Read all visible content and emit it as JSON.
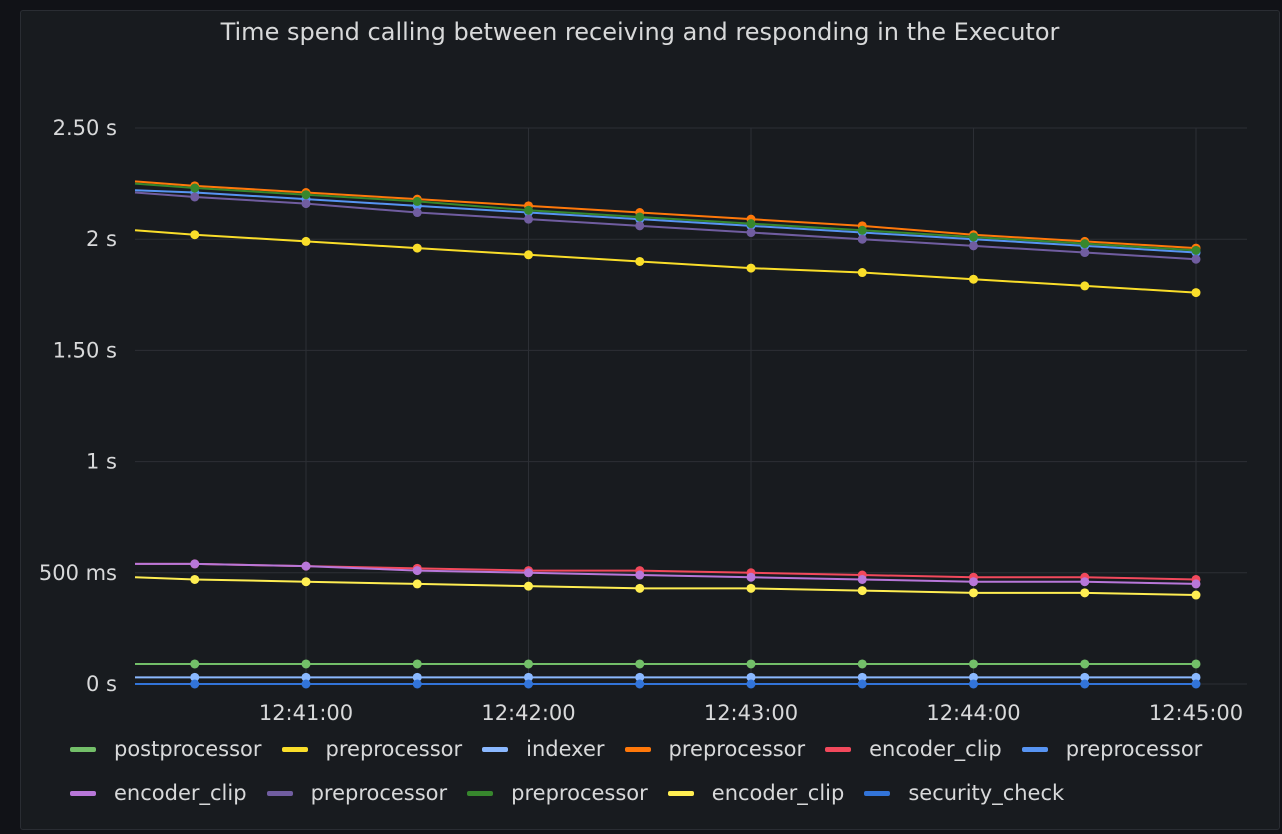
{
  "panel": {
    "title": "Time spend calling between receiving and responding in the Executor"
  },
  "chart_data": {
    "type": "line",
    "title": "Time spend calling between receiving and responding in the Executor",
    "y_unit": "s",
    "ylim": [
      0,
      2.5
    ],
    "y_ticks": [
      {
        "value": 0,
        "label": "0 s"
      },
      {
        "value": 0.5,
        "label": "500 ms"
      },
      {
        "value": 1,
        "label": "1 s"
      },
      {
        "value": 1.5,
        "label": "1.50 s"
      },
      {
        "value": 2,
        "label": "2 s"
      },
      {
        "value": 2.5,
        "label": "2.50 s"
      }
    ],
    "x_ticks": [
      "12:41:00",
      "12:42:00",
      "12:43:00",
      "12:44:00",
      "12:45:00"
    ],
    "x": [
      "12:40:30",
      "12:41:00",
      "12:41:30",
      "12:42:00",
      "12:42:30",
      "12:43:00",
      "12:43:30",
      "12:44:00",
      "12:44:30",
      "12:45:00"
    ],
    "grid": true,
    "legend_position": "bottom",
    "series": [
      {
        "name": "postprocessor",
        "color": "#73bf69",
        "start": 0.09,
        "values": [
          0.09,
          0.09,
          0.09,
          0.09,
          0.09,
          0.09,
          0.09,
          0.09,
          0.09,
          0.09
        ]
      },
      {
        "name": "preprocessor",
        "color": "#fade2a",
        "start": 2.04,
        "values": [
          2.02,
          1.99,
          1.96,
          1.93,
          1.9,
          1.87,
          1.85,
          1.82,
          1.79,
          1.76
        ]
      },
      {
        "name": "indexer",
        "color": "#8ab8ff",
        "start": 0.03,
        "values": [
          0.03,
          0.03,
          0.03,
          0.03,
          0.03,
          0.03,
          0.03,
          0.03,
          0.03,
          0.03
        ]
      },
      {
        "name": "preprocessor",
        "color": "#ff780a",
        "start": 2.26,
        "values": [
          2.24,
          2.21,
          2.18,
          2.15,
          2.12,
          2.09,
          2.06,
          2.02,
          1.99,
          1.96
        ]
      },
      {
        "name": "encoder_clip",
        "color": "#f2495c",
        "start": 0.54,
        "values": [
          0.54,
          0.53,
          0.52,
          0.51,
          0.51,
          0.5,
          0.49,
          0.48,
          0.48,
          0.47
        ]
      },
      {
        "name": "preprocessor",
        "color": "#5794f2",
        "start": 2.22,
        "values": [
          2.21,
          2.18,
          2.15,
          2.12,
          2.09,
          2.06,
          2.03,
          2.0,
          1.97,
          1.94
        ]
      },
      {
        "name": "encoder_clip",
        "color": "#b877d9",
        "start": 0.54,
        "values": [
          0.54,
          0.53,
          0.51,
          0.5,
          0.49,
          0.48,
          0.47,
          0.46,
          0.46,
          0.45
        ]
      },
      {
        "name": "preprocessor",
        "color": "#705da0",
        "start": 2.21,
        "values": [
          2.19,
          2.16,
          2.12,
          2.09,
          2.06,
          2.03,
          2.0,
          1.97,
          1.94,
          1.91
        ]
      },
      {
        "name": "preprocessor",
        "color": "#37872d",
        "start": 2.25,
        "values": [
          2.23,
          2.2,
          2.17,
          2.13,
          2.1,
          2.07,
          2.04,
          2.01,
          1.98,
          1.95
        ]
      },
      {
        "name": "encoder_clip",
        "color": "#ffee52",
        "start": 0.48,
        "values": [
          0.47,
          0.46,
          0.45,
          0.44,
          0.43,
          0.43,
          0.42,
          0.41,
          0.41,
          0.4
        ]
      },
      {
        "name": "security_check",
        "color": "#3274d9",
        "start": 0.0,
        "values": [
          0.0,
          0.0,
          0.0,
          0.0,
          0.0,
          0.0,
          0.0,
          0.0,
          0.0,
          0.0
        ]
      }
    ]
  }
}
